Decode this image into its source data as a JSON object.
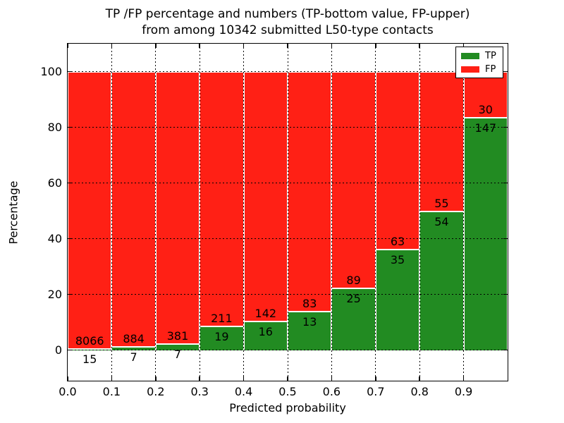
{
  "chart_data": {
    "type": "bar",
    "stacked": true,
    "title_line1": "TP /FP percentage and numbers (TP-bottom value, FP-upper)",
    "title_line2": "from among 10342 submitted L50-type contacts",
    "total_submitted": 10342,
    "xlabel": "Predicted probability",
    "ylabel": "Percentage",
    "xlim": [
      0.0,
      1.0
    ],
    "ylim": [
      -11,
      110
    ],
    "bar_width": 0.1,
    "grid": "dotted black, horizontal every 20, vertical every 0.1, drawn above bars",
    "x_tick_labels": [
      "0.0",
      "0.1",
      "0.2",
      "0.3",
      "0.4",
      "0.5",
      "0.6",
      "0.7",
      "0.8",
      "0.9"
    ],
    "y_tick_values": [
      0,
      20,
      40,
      60,
      80,
      100
    ],
    "categories": [
      "0.0-0.1",
      "0.1-0.2",
      "0.2-0.3",
      "0.3-0.4",
      "0.4-0.5",
      "0.5-0.6",
      "0.6-0.7",
      "0.7-0.8",
      "0.8-0.9",
      "0.9-1.0"
    ],
    "series": [
      {
        "name": "TP",
        "counts": [
          15,
          7,
          7,
          19,
          16,
          13,
          25,
          35,
          54,
          147
        ],
        "pct": [
          0.19,
          0.79,
          1.8,
          8.26,
          10.13,
          13.54,
          21.93,
          35.71,
          49.54,
          83.05
        ]
      },
      {
        "name": "FP",
        "counts": [
          8066,
          884,
          381,
          211,
          142,
          83,
          89,
          63,
          55,
          30
        ],
        "pct": [
          99.81,
          99.21,
          98.2,
          91.74,
          89.87,
          86.46,
          78.07,
          64.29,
          50.46,
          16.95
        ]
      }
    ],
    "colors": {
      "tp": "#228b22",
      "fp": "#ff2015",
      "bar_edge": "#ffffff",
      "axis": "#000000"
    },
    "legend": {
      "position": "upper right",
      "items": [
        {
          "label": "TP",
          "color": "#228b22"
        },
        {
          "label": "FP",
          "color": "#ff2015"
        }
      ]
    }
  }
}
